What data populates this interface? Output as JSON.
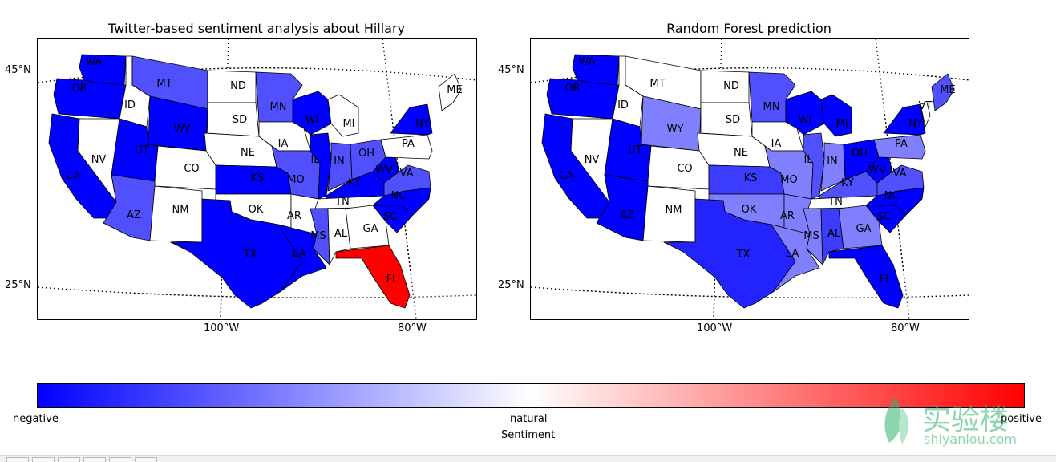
{
  "panels": [
    {
      "title": "Twitter-based sentiment analysis about Hillary",
      "lat_labels": [
        "45°N",
        "25°N"
      ],
      "lon_labels": [
        "100°W",
        "80°W"
      ],
      "states": [
        {
          "code": "WA",
          "value": -1.0,
          "color": "#0000ff"
        },
        {
          "code": "OR",
          "value": -1.0,
          "color": "#0000ff"
        },
        {
          "code": "CA",
          "value": -1.0,
          "color": "#0000ff"
        },
        {
          "code": "NV",
          "value": 0.0,
          "color": "#ffffff"
        },
        {
          "code": "ID",
          "value": 0.0,
          "color": "#ffffff"
        },
        {
          "code": "MT",
          "value": -0.68,
          "color": "#5050ff"
        },
        {
          "code": "WY",
          "value": -1.0,
          "color": "#0000ff"
        },
        {
          "code": "UT",
          "value": -1.0,
          "color": "#0000ff"
        },
        {
          "code": "CO",
          "value": 0.0,
          "color": "#ffffff"
        },
        {
          "code": "AZ",
          "value": -0.68,
          "color": "#5050ff"
        },
        {
          "code": "NM",
          "value": 0.0,
          "color": "#ffffff"
        },
        {
          "code": "ND",
          "value": 0.0,
          "color": "#ffffff"
        },
        {
          "code": "SD",
          "value": 0.0,
          "color": "#ffffff"
        },
        {
          "code": "NE",
          "value": 0.0,
          "color": "#ffffff"
        },
        {
          "code": "KS",
          "value": -1.0,
          "color": "#0000ff"
        },
        {
          "code": "OK",
          "value": 0.0,
          "color": "#ffffff"
        },
        {
          "code": "TX",
          "value": -1.0,
          "color": "#0000ff"
        },
        {
          "code": "MN",
          "value": -0.68,
          "color": "#5050ff"
        },
        {
          "code": "IA",
          "value": 0.0,
          "color": "#ffffff"
        },
        {
          "code": "MO",
          "value": -0.68,
          "color": "#5050ff"
        },
        {
          "code": "AR",
          "value": 0.0,
          "color": "#ffffff"
        },
        {
          "code": "LA",
          "value": -1.0,
          "color": "#0000ff"
        },
        {
          "code": "WI",
          "value": -1.0,
          "color": "#0000ff"
        },
        {
          "code": "IL",
          "value": -1.0,
          "color": "#0000ff"
        },
        {
          "code": "MI",
          "value": 0.0,
          "color": "#ffffff"
        },
        {
          "code": "IN",
          "value": -0.68,
          "color": "#5050ff"
        },
        {
          "code": "OH",
          "value": -0.68,
          "color": "#5050ff"
        },
        {
          "code": "KY",
          "value": -1.0,
          "color": "#0000ff"
        },
        {
          "code": "TN",
          "value": 0.0,
          "color": "#ffffff"
        },
        {
          "code": "MS",
          "value": -0.68,
          "color": "#5050ff"
        },
        {
          "code": "AL",
          "value": 0.0,
          "color": "#ffffff"
        },
        {
          "code": "GA",
          "value": 0.0,
          "color": "#ffffff"
        },
        {
          "code": "FL",
          "value": 1.0,
          "color": "#ff0000"
        },
        {
          "code": "SC",
          "value": -1.0,
          "color": "#0000ff"
        },
        {
          "code": "NC",
          "value": -1.0,
          "color": "#0000ff"
        },
        {
          "code": "VA",
          "value": -0.68,
          "color": "#5050ff"
        },
        {
          "code": "WV",
          "value": -1.0,
          "color": "#0000ff"
        },
        {
          "code": "PA",
          "value": 0.0,
          "color": "#ffffff"
        },
        {
          "code": "NY",
          "value": -1.0,
          "color": "#0000ff"
        },
        {
          "code": "ME",
          "value": 0.0,
          "color": "#ffffff"
        }
      ]
    },
    {
      "title": "Random Forest prediction",
      "lat_labels": [
        "45°N",
        "25°N"
      ],
      "lon_labels": [
        "100°W",
        "80°W"
      ],
      "states": [
        {
          "code": "WA",
          "value": -1.0,
          "color": "#0000ff"
        },
        {
          "code": "OR",
          "value": -1.0,
          "color": "#0000ff"
        },
        {
          "code": "CA",
          "value": -1.0,
          "color": "#0000ff"
        },
        {
          "code": "NV",
          "value": 0.0,
          "color": "#ffffff"
        },
        {
          "code": "ID",
          "value": 0.0,
          "color": "#ffffff"
        },
        {
          "code": "MT",
          "value": 0.0,
          "color": "#ffffff"
        },
        {
          "code": "WY",
          "value": -0.5,
          "color": "#8080ff"
        },
        {
          "code": "UT",
          "value": -1.0,
          "color": "#0000ff"
        },
        {
          "code": "CO",
          "value": 0.0,
          "color": "#ffffff"
        },
        {
          "code": "AZ",
          "value": -1.0,
          "color": "#0000ff"
        },
        {
          "code": "NM",
          "value": 0.0,
          "color": "#ffffff"
        },
        {
          "code": "ND",
          "value": 0.0,
          "color": "#ffffff"
        },
        {
          "code": "SD",
          "value": 0.0,
          "color": "#ffffff"
        },
        {
          "code": "NE",
          "value": 0.0,
          "color": "#ffffff"
        },
        {
          "code": "KS",
          "value": -0.76,
          "color": "#3c3cff"
        },
        {
          "code": "OK",
          "value": -0.5,
          "color": "#8080ff"
        },
        {
          "code": "TX",
          "value": -0.86,
          "color": "#2323ff"
        },
        {
          "code": "MN",
          "value": -0.68,
          "color": "#5050ff"
        },
        {
          "code": "IA",
          "value": 0.0,
          "color": "#ffffff"
        },
        {
          "code": "MO",
          "value": -0.5,
          "color": "#8080ff"
        },
        {
          "code": "AR",
          "value": -0.5,
          "color": "#8080ff"
        },
        {
          "code": "LA",
          "value": -0.5,
          "color": "#8080ff"
        },
        {
          "code": "WI",
          "value": -1.0,
          "color": "#0000ff"
        },
        {
          "code": "IL",
          "value": -0.68,
          "color": "#5050ff"
        },
        {
          "code": "MI",
          "value": -1.0,
          "color": "#0000ff"
        },
        {
          "code": "IN",
          "value": -0.5,
          "color": "#8080ff"
        },
        {
          "code": "OH",
          "value": -1.0,
          "color": "#0000ff"
        },
        {
          "code": "KY",
          "value": -0.68,
          "color": "#5050ff"
        },
        {
          "code": "TN",
          "value": 0.0,
          "color": "#ffffff"
        },
        {
          "code": "MS",
          "value": -0.5,
          "color": "#8080ff"
        },
        {
          "code": "AL",
          "value": -0.76,
          "color": "#3c3cff"
        },
        {
          "code": "GA",
          "value": -0.5,
          "color": "#8080ff"
        },
        {
          "code": "FL",
          "value": -1.0,
          "color": "#0000ff"
        },
        {
          "code": "SC",
          "value": -1.0,
          "color": "#0000ff"
        },
        {
          "code": "NC",
          "value": -1.0,
          "color": "#0000ff"
        },
        {
          "code": "VA",
          "value": -0.68,
          "color": "#5050ff"
        },
        {
          "code": "WV",
          "value": -1.0,
          "color": "#0000ff"
        },
        {
          "code": "PA",
          "value": -0.5,
          "color": "#8080ff"
        },
        {
          "code": "NY",
          "value": -1.0,
          "color": "#0000ff"
        },
        {
          "code": "VT",
          "value": 0.0,
          "color": "#ffffff"
        },
        {
          "code": "ME",
          "value": -0.68,
          "color": "#5050ff"
        }
      ]
    }
  ],
  "colorbar": {
    "label": "Sentiment",
    "tick_labels": [
      "negative",
      "natural",
      "positive"
    ],
    "colors": [
      "#0000ff",
      "#ffffff",
      "#ff0000"
    ]
  },
  "watermark": {
    "text": "实验楼",
    "url_text": "shiyanlou.com",
    "color": "#2fb36b"
  }
}
